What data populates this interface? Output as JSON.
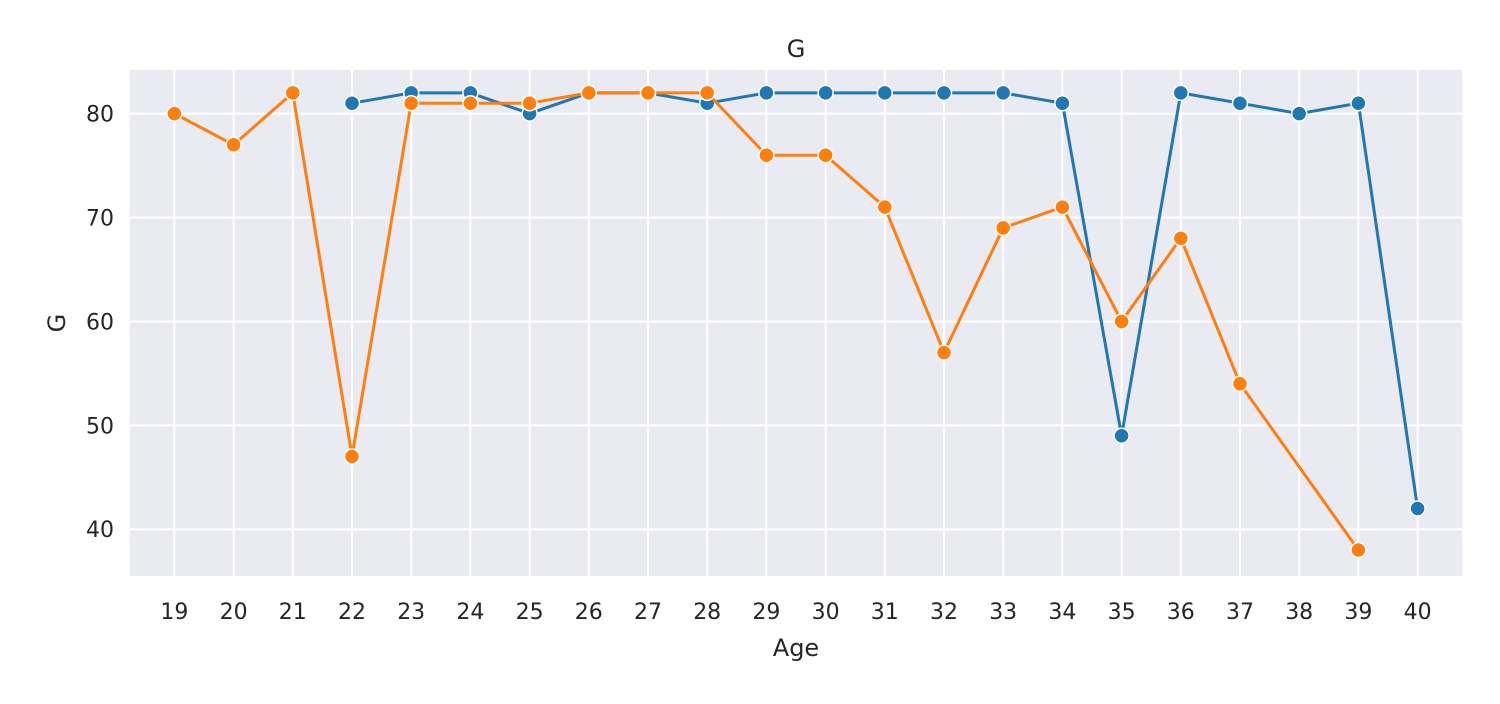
{
  "chart_data": {
    "type": "line",
    "title": "G",
    "xlabel": "Age",
    "ylabel": "G",
    "x": [
      19,
      20,
      21,
      22,
      23,
      24,
      25,
      26,
      27,
      28,
      29,
      30,
      31,
      32,
      33,
      34,
      35,
      36,
      37,
      38,
      39,
      40
    ],
    "xlim": [
      18.25,
      40.75
    ],
    "ylim": [
      35.5,
      84.2
    ],
    "yticks": [
      40,
      50,
      60,
      70,
      80
    ],
    "grid": true,
    "background": "#eaeaf2",
    "series": [
      {
        "color": "#1f77b4",
        "points": [
          [
            22,
            81
          ],
          [
            23,
            82
          ],
          [
            24,
            82
          ],
          [
            25,
            80
          ],
          [
            26,
            82
          ],
          [
            27,
            82
          ],
          [
            28,
            81
          ],
          [
            29,
            82
          ],
          [
            30,
            82
          ],
          [
            31,
            82
          ],
          [
            32,
            82
          ],
          [
            33,
            82
          ],
          [
            34,
            81
          ],
          [
            35,
            49
          ],
          [
            36,
            82
          ],
          [
            37,
            81
          ],
          [
            38,
            80
          ],
          [
            39,
            81
          ],
          [
            40,
            42
          ]
        ]
      },
      {
        "color": "#ff7f0e",
        "points": [
          [
            19,
            80
          ],
          [
            20,
            77
          ],
          [
            21,
            82
          ],
          [
            22,
            47
          ],
          [
            23,
            81
          ],
          [
            24,
            81
          ],
          [
            25,
            81
          ],
          [
            26,
            82
          ],
          [
            27,
            82
          ],
          [
            28,
            82
          ],
          [
            29,
            76
          ],
          [
            30,
            76
          ],
          [
            31,
            71
          ],
          [
            32,
            57
          ],
          [
            33,
            69
          ],
          [
            34,
            71
          ],
          [
            35,
            60
          ],
          [
            36,
            68
          ],
          [
            37,
            54
          ],
          [
            39,
            38
          ]
        ]
      }
    ]
  }
}
